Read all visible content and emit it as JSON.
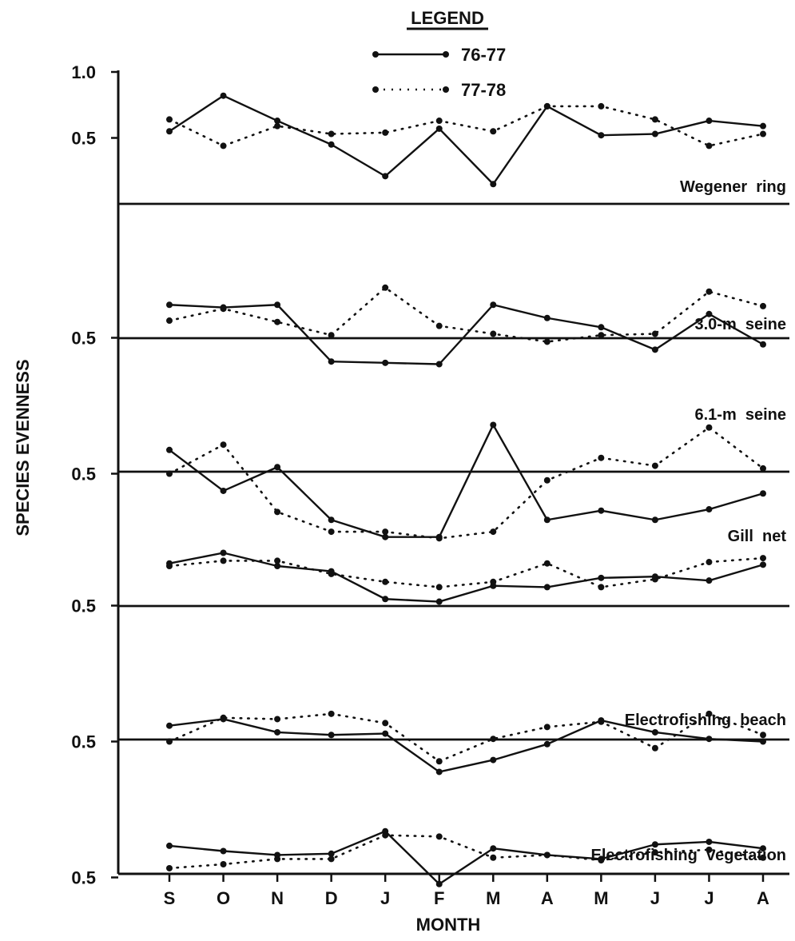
{
  "chart_data": {
    "type": "line",
    "xlabel": "MONTH",
    "ylabel": "SPECIES EVENNESS",
    "categories": [
      "S",
      "O",
      "N",
      "D",
      "J",
      "F",
      "M",
      "A",
      "M",
      "J",
      "J",
      "A"
    ],
    "legend": {
      "title": "LEGEND",
      "placement": "top-center",
      "entries": [
        {
          "label": "76-77",
          "style": "solid"
        },
        {
          "label": "77-78",
          "style": "dotted"
        }
      ]
    },
    "grid": false,
    "colors": {
      "ink": "#111111",
      "background": "#ffffff"
    },
    "panels": [
      {
        "label": "Wegener  ring",
        "ylim": [
          0.0,
          1.0
        ],
        "yticks": [
          {
            "value": 0.5,
            "label": "0.5"
          },
          {
            "value": 1.0,
            "label": "1.0"
          }
        ],
        "series": [
          {
            "name": "76-77",
            "style": "solid",
            "values": [
              0.55,
              0.82,
              0.63,
              0.45,
              0.21,
              0.57,
              0.15,
              0.74,
              0.52,
              0.53,
              0.63,
              0.59
            ]
          },
          {
            "name": "77-78",
            "style": "dotted",
            "values": [
              0.64,
              0.44,
              0.59,
              0.53,
              0.54,
              0.63,
              0.55,
              0.74,
              0.74,
              0.64,
              0.44,
              0.53
            ]
          }
        ]
      },
      {
        "label": "3.0-m  seine",
        "ylim": [
          0.0,
          1.0
        ],
        "yticks": [
          {
            "value": 0.5,
            "label": "0.5"
          }
        ],
        "series": [
          {
            "name": "76-77",
            "style": "solid",
            "values": [
              0.75,
              0.73,
              0.75,
              0.32,
              0.31,
              0.3,
              0.75,
              0.65,
              0.58,
              0.41,
              0.68,
              0.45
            ]
          },
          {
            "name": "77-78",
            "style": "dotted",
            "values": [
              0.63,
              0.72,
              0.62,
              0.52,
              0.88,
              0.59,
              0.53,
              0.47,
              0.52,
              0.53,
              0.85,
              0.74
            ]
          }
        ]
      },
      {
        "label": "6.1-m  seine",
        "ylim": [
          0.0,
          1.0
        ],
        "yticks": [
          {
            "value": 0.5,
            "label": "0.5"
          }
        ],
        "series": [
          {
            "name": "76-77",
            "style": "solid",
            "values": [
              0.68,
              0.37,
              0.55,
              0.15,
              0.02,
              0.02,
              0.87,
              0.15,
              0.22,
              0.15,
              0.23,
              0.35
            ]
          },
          {
            "name": "77-78",
            "style": "dotted",
            "values": [
              0.5,
              0.72,
              0.21,
              0.06,
              0.06,
              0.01,
              0.06,
              0.45,
              0.62,
              0.56,
              0.85,
              0.54
            ]
          }
        ]
      },
      {
        "label": "Gill  net",
        "ylim": [
          0.0,
          1.0
        ],
        "yticks": [
          {
            "value": 0.5,
            "label": "0.5"
          }
        ],
        "series": [
          {
            "name": "76-77",
            "style": "solid",
            "values": [
              0.82,
              0.9,
              0.8,
              0.76,
              0.55,
              0.53,
              0.65,
              0.64,
              0.71,
              0.72,
              0.69,
              0.81
            ]
          },
          {
            "name": "77-78",
            "style": "dotted",
            "values": [
              0.8,
              0.84,
              0.84,
              0.74,
              0.68,
              0.64,
              0.68,
              0.82,
              0.64,
              0.7,
              0.83,
              0.86
            ]
          }
        ]
      },
      {
        "label": "Electrofishing  beach",
        "ylim": [
          0.0,
          1.0
        ],
        "yticks": [
          {
            "value": 0.5,
            "label": "0.5"
          }
        ],
        "series": [
          {
            "name": "76-77",
            "style": "solid",
            "values": [
              0.62,
              0.67,
              0.57,
              0.55,
              0.56,
              0.27,
              0.36,
              0.48,
              0.66,
              0.57,
              0.52,
              0.5
            ]
          },
          {
            "name": "77-78",
            "style": "dotted",
            "values": [
              0.5,
              0.68,
              0.67,
              0.71,
              0.64,
              0.35,
              0.52,
              0.61,
              0.65,
              0.45,
              0.71,
              0.55
            ]
          }
        ]
      },
      {
        "label": "Electrofishing  vegetation",
        "ylim": [
          0.0,
          1.0
        ],
        "yticks": [
          {
            "value": 0.5,
            "label": "0.5"
          }
        ],
        "series": [
          {
            "name": "76-77",
            "style": "solid",
            "values": [
              0.74,
              0.7,
              0.67,
              0.68,
              0.85,
              0.45,
              0.72,
              0.67,
              0.64,
              0.75,
              0.77,
              0.72
            ]
          },
          {
            "name": "77-78",
            "style": "dotted",
            "values": [
              0.57,
              0.6,
              0.64,
              0.64,
              0.82,
              0.81,
              0.65,
              0.67,
              0.63,
              0.69,
              0.71,
              0.65
            ]
          }
        ]
      }
    ]
  }
}
